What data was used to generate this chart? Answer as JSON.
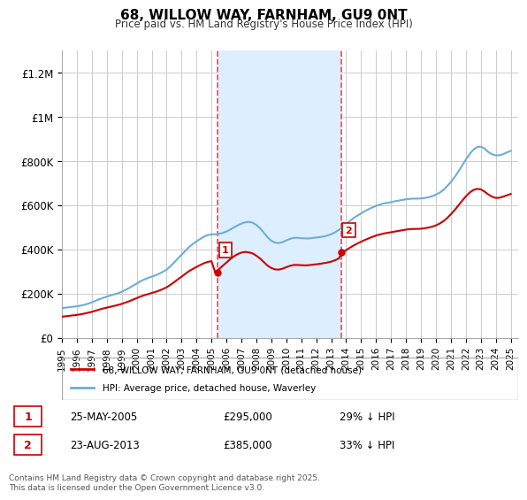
{
  "title": "68, WILLOW WAY, FARNHAM, GU9 0NT",
  "subtitle": "Price paid vs. HM Land Registry's House Price Index (HPI)",
  "ylabel_ticks": [
    "£0",
    "£200K",
    "£400K",
    "£600K",
    "£800K",
    "£1M",
    "£1.2M"
  ],
  "ytick_values": [
    0,
    200000,
    400000,
    600000,
    800000,
    1000000,
    1200000
  ],
  "ylim": [
    0,
    1300000
  ],
  "xlim_start": 1995.0,
  "xlim_end": 2025.5,
  "sale1_date": 2005.4,
  "sale2_date": 2013.65,
  "sale1_price": 295000,
  "sale2_price": 385000,
  "sale1_label": "25-MAY-2005",
  "sale2_label": "23-AUG-2013",
  "sale1_hpi": "29% ↓ HPI",
  "sale2_hpi": "33% ↓ HPI",
  "hpi_line_color": "#6baed6",
  "price_line_color": "#cc0000",
  "shade_color": "#ddeeff",
  "vline_color": "#ff4444",
  "legend_label1": "68, WILLOW WAY, FARNHAM, GU9 0NT (detached house)",
  "legend_label2": "HPI: Average price, detached house, Waverley",
  "footer": "Contains HM Land Registry data © Crown copyright and database right 2025.\nThis data is licensed under the Open Government Licence v3.0.",
  "hpi_years": [
    1995.0,
    1995.25,
    1995.5,
    1995.75,
    1996.0,
    1996.25,
    1996.5,
    1996.75,
    1997.0,
    1997.25,
    1997.5,
    1997.75,
    1998.0,
    1998.25,
    1998.5,
    1998.75,
    1999.0,
    1999.25,
    1999.5,
    1999.75,
    2000.0,
    2000.25,
    2000.5,
    2000.75,
    2001.0,
    2001.25,
    2001.5,
    2001.75,
    2002.0,
    2002.25,
    2002.5,
    2002.75,
    2003.0,
    2003.25,
    2003.5,
    2003.75,
    2004.0,
    2004.25,
    2004.5,
    2004.75,
    2005.0,
    2005.25,
    2005.5,
    2005.75,
    2006.0,
    2006.25,
    2006.5,
    2006.75,
    2007.0,
    2007.25,
    2007.5,
    2007.75,
    2008.0,
    2008.25,
    2008.5,
    2008.75,
    2009.0,
    2009.25,
    2009.5,
    2009.75,
    2010.0,
    2010.25,
    2010.5,
    2010.75,
    2011.0,
    2011.25,
    2011.5,
    2011.75,
    2012.0,
    2012.25,
    2012.5,
    2012.75,
    2013.0,
    2013.25,
    2013.5,
    2013.75,
    2014.0,
    2014.25,
    2014.5,
    2014.75,
    2015.0,
    2015.25,
    2015.5,
    2015.75,
    2016.0,
    2016.25,
    2016.5,
    2016.75,
    2017.0,
    2017.25,
    2017.5,
    2017.75,
    2018.0,
    2018.25,
    2018.5,
    2018.75,
    2019.0,
    2019.25,
    2019.5,
    2019.75,
    2020.0,
    2020.25,
    2020.5,
    2020.75,
    2021.0,
    2021.25,
    2021.5,
    2021.75,
    2022.0,
    2022.25,
    2022.5,
    2022.75,
    2023.0,
    2023.25,
    2023.5,
    2023.75,
    2024.0,
    2024.25,
    2024.5,
    2024.75,
    2025.0
  ],
  "hpi_values": [
    133000,
    136000,
    138000,
    140000,
    142000,
    145000,
    149000,
    154000,
    160000,
    167000,
    174000,
    180000,
    186000,
    191000,
    196000,
    201000,
    208000,
    216000,
    225000,
    235000,
    245000,
    255000,
    263000,
    270000,
    276000,
    282000,
    289000,
    298000,
    308000,
    323000,
    340000,
    358000,
    375000,
    393000,
    410000,
    424000,
    436000,
    447000,
    457000,
    464000,
    467000,
    468000,
    470000,
    474000,
    480000,
    489000,
    499000,
    508000,
    516000,
    522000,
    524000,
    520000,
    510000,
    495000,
    475000,
    454000,
    438000,
    430000,
    428000,
    432000,
    440000,
    447000,
    452000,
    452000,
    450000,
    449000,
    449000,
    451000,
    453000,
    455000,
    458000,
    462000,
    468000,
    476000,
    487000,
    500000,
    514000,
    528000,
    541000,
    552000,
    562000,
    572000,
    581000,
    589000,
    596000,
    602000,
    607000,
    610000,
    613000,
    617000,
    620000,
    623000,
    626000,
    628000,
    629000,
    629000,
    630000,
    632000,
    635000,
    640000,
    647000,
    656000,
    668000,
    685000,
    704000,
    726000,
    751000,
    778000,
    805000,
    830000,
    850000,
    862000,
    864000,
    856000,
    840000,
    830000,
    825000,
    825000,
    830000,
    838000,
    845000
  ],
  "red_years": [
    1995.0,
    1995.25,
    1995.5,
    1995.75,
    1996.0,
    1996.25,
    1996.5,
    1996.75,
    1997.0,
    1997.25,
    1997.5,
    1997.75,
    1998.0,
    1998.25,
    1998.5,
    1998.75,
    1999.0,
    1999.25,
    1999.5,
    1999.75,
    2000.0,
    2000.25,
    2000.5,
    2000.75,
    2001.0,
    2001.25,
    2001.5,
    2001.75,
    2002.0,
    2002.25,
    2002.5,
    2002.75,
    2003.0,
    2003.25,
    2003.5,
    2003.75,
    2004.0,
    2004.25,
    2004.5,
    2004.75,
    2005.0,
    2005.25,
    2005.5,
    2005.75,
    2006.0,
    2006.25,
    2006.5,
    2006.75,
    2007.0,
    2007.25,
    2007.5,
    2007.75,
    2008.0,
    2008.25,
    2008.5,
    2008.75,
    2009.0,
    2009.25,
    2009.5,
    2009.75,
    2010.0,
    2010.25,
    2010.5,
    2010.75,
    2011.0,
    2011.25,
    2011.5,
    2011.75,
    2012.0,
    2012.25,
    2012.5,
    2012.75,
    2013.0,
    2013.25,
    2013.5,
    2013.75,
    2014.0,
    2014.25,
    2014.5,
    2014.75,
    2015.0,
    2015.25,
    2015.5,
    2015.75,
    2016.0,
    2016.25,
    2016.5,
    2016.75,
    2017.0,
    2017.25,
    2017.5,
    2017.75,
    2018.0,
    2018.25,
    2018.5,
    2018.75,
    2019.0,
    2019.25,
    2019.5,
    2019.75,
    2020.0,
    2020.25,
    2020.5,
    2020.75,
    2021.0,
    2021.25,
    2021.5,
    2021.75,
    2022.0,
    2022.25,
    2022.5,
    2022.75,
    2023.0,
    2023.25,
    2023.5,
    2023.75,
    2024.0,
    2024.25,
    2024.5,
    2024.75,
    2025.0
  ],
  "red_values": [
    95000,
    97000,
    99000,
    101000,
    103000,
    106000,
    109000,
    113000,
    117000,
    122000,
    127000,
    132000,
    136000,
    140000,
    144000,
    148000,
    153000,
    159000,
    165000,
    172000,
    179000,
    186000,
    192000,
    197000,
    202000,
    207000,
    213000,
    220000,
    228000,
    239000,
    251000,
    264000,
    276000,
    289000,
    301000,
    311000,
    320000,
    329000,
    337000,
    343000,
    346000,
    295000,
    310000,
    325000,
    340000,
    355000,
    368000,
    378000,
    385000,
    388000,
    386000,
    381000,
    371000,
    358000,
    342000,
    326000,
    315000,
    309000,
    308000,
    312000,
    319000,
    325000,
    329000,
    329000,
    328000,
    327000,
    328000,
    330000,
    332000,
    334000,
    337000,
    340000,
    344000,
    350000,
    358000,
    385000,
    396000,
    407000,
    417000,
    426000,
    434000,
    442000,
    449000,
    456000,
    462000,
    467000,
    471000,
    474000,
    477000,
    480000,
    483000,
    486000,
    489000,
    491000,
    492000,
    492000,
    493000,
    495000,
    498000,
    502000,
    508000,
    516000,
    527000,
    541000,
    558000,
    577000,
    598000,
    619000,
    639000,
    656000,
    668000,
    673000,
    671000,
    661000,
    648000,
    638000,
    632000,
    633000,
    638000,
    644000,
    650000
  ]
}
